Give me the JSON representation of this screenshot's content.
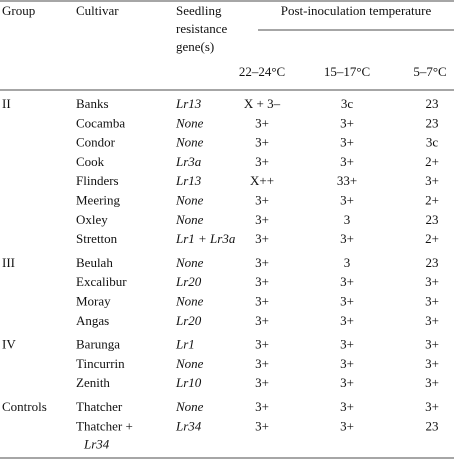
{
  "table": {
    "header": {
      "group": "Group",
      "cultivar": "Cultivar",
      "gene": [
        "Seedling",
        "resistance",
        "gene(s)"
      ],
      "temperature": "Post-inoculation temperature",
      "temps": [
        "22–24°C",
        "15–17°C",
        "5–7°C"
      ]
    },
    "groups": [
      {
        "name": "II",
        "rows": [
          {
            "cultivar": "Banks",
            "gene": "Lr13",
            "temps": [
              "X + 3–",
              "3c",
              "23"
            ]
          },
          {
            "cultivar": "Cocamba",
            "gene": "None",
            "temps": [
              "3+",
              "3+",
              "23"
            ]
          },
          {
            "cultivar": "Condor",
            "gene": "None",
            "temps": [
              "3+",
              "3+",
              "3c"
            ]
          },
          {
            "cultivar": "Cook",
            "gene": "Lr3a",
            "temps": [
              "3+",
              "3+",
              "2+"
            ]
          },
          {
            "cultivar": "Flinders",
            "gene": "Lr13",
            "temps": [
              "X++",
              "33+",
              "3+"
            ]
          },
          {
            "cultivar": "Meering",
            "gene": "None",
            "temps": [
              "3+",
              "3+",
              "2+"
            ]
          },
          {
            "cultivar": "Oxley",
            "gene": "None",
            "temps": [
              "3+",
              "3",
              "23"
            ]
          },
          {
            "cultivar": "Stretton",
            "gene": "Lr1 + Lr3a",
            "temps": [
              "3+",
              "3+",
              "2+"
            ]
          }
        ]
      },
      {
        "name": "III",
        "rows": [
          {
            "cultivar": "Beulah",
            "gene": "None",
            "temps": [
              "3+",
              "3",
              "23"
            ]
          },
          {
            "cultivar": "Excalibur",
            "gene": "Lr20",
            "temps": [
              "3+",
              "3+",
              "3+"
            ]
          },
          {
            "cultivar": "Moray",
            "gene": "None",
            "temps": [
              "3+",
              "3+",
              "3+"
            ]
          },
          {
            "cultivar": "Angas",
            "gene": "Lr20",
            "temps": [
              "3+",
              "3+",
              "3+"
            ]
          }
        ]
      },
      {
        "name": "IV",
        "rows": [
          {
            "cultivar": "Barunga",
            "gene": "Lr1",
            "temps": [
              "3+",
              "3+",
              "3+"
            ]
          },
          {
            "cultivar": "Tincurrin",
            "gene": "None",
            "temps": [
              "3+",
              "3+",
              "3+"
            ]
          },
          {
            "cultivar": "Zenith",
            "gene": "Lr10",
            "temps": [
              "3+",
              "3+",
              "3+"
            ]
          }
        ]
      },
      {
        "name": "Controls",
        "rows": [
          {
            "cultivar": "Thatcher",
            "gene": "None",
            "temps": [
              "3+",
              "3+",
              "3+"
            ]
          },
          {
            "cultivar": "Thatcher +",
            "cultivar_gene": "Lr34",
            "gene": "Lr34",
            "temps": [
              "3+",
              "3+",
              "23"
            ]
          }
        ]
      }
    ]
  }
}
